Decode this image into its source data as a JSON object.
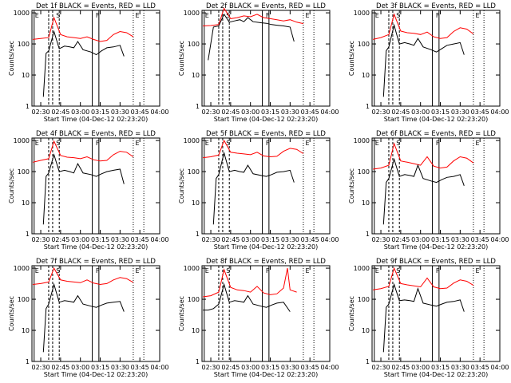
{
  "chart_data": [
    {
      "type": "line",
      "title": "Det 1f BLACK = Events, RED = LLD",
      "xlabel": "Start Time (04-Dec-12 02:23:20)",
      "ylabel": "Counts/sec",
      "xticks": [
        "02:30",
        "02:45",
        "03:00",
        "03:15",
        "03:30",
        "03:45",
        "04:00"
      ],
      "yticks": [
        "1",
        "10",
        "100",
        "1000"
      ],
      "yscale": "log",
      "xlim": [
        "02:23:20",
        "04:00:00"
      ],
      "ylim": [
        1,
        1200
      ],
      "markers": [
        "E",
        "S",
        "F",
        "E"
      ],
      "series": [
        {
          "name": "LLD",
          "color": "#ff0000",
          "x": [
            24,
            30,
            36,
            40,
            45,
            50,
            55,
            60,
            65,
            70,
            75,
            80,
            85,
            90,
            95,
            100
          ],
          "y": [
            140,
            150,
            160,
            700,
            200,
            170,
            160,
            150,
            170,
            140,
            120,
            130,
            200,
            250,
            230,
            170
          ]
        },
        {
          "name": "Events",
          "color": "#000000",
          "x": [
            32,
            34,
            36,
            40,
            44,
            48,
            52,
            55,
            58,
            62,
            68,
            72,
            76,
            80,
            85,
            90,
            93
          ],
          "y": [
            2,
            50,
            60,
            250,
            70,
            85,
            80,
            75,
            120,
            65,
            55,
            45,
            60,
            75,
            80,
            90,
            40
          ]
        }
      ]
    },
    {
      "type": "line",
      "title": "Det 2f BLACK = Events, RED = LLD",
      "xlabel": "Start Time (04-Dec-12 02:23:20)",
      "ylabel": "Counts/sec",
      "xticks": [
        "02:30",
        "02:45",
        "03:00",
        "03:15",
        "03:30",
        "03:45",
        "04:00"
      ],
      "yticks": [
        "1",
        "10",
        "100",
        "1000"
      ],
      "yscale": "log",
      "xlim": [
        "02:23:20",
        "04:00:00"
      ],
      "ylim": [
        1,
        1200
      ],
      "markers": [
        "E",
        "S",
        "F",
        "E"
      ],
      "series": [
        {
          "name": "LLD",
          "color": "#ff0000",
          "x": [
            24,
            30,
            36,
            40,
            45,
            50,
            55,
            60,
            65,
            70,
            75,
            80,
            85,
            90,
            95,
            100
          ],
          "y": [
            380,
            390,
            420,
            1400,
            650,
            700,
            800,
            750,
            900,
            700,
            650,
            600,
            550,
            600,
            500,
            450
          ]
        },
        {
          "name": "Events",
          "color": "#000000",
          "x": [
            28,
            32,
            36,
            40,
            44,
            48,
            52,
            55,
            58,
            62,
            68,
            72,
            76,
            80,
            85,
            90,
            93
          ],
          "y": [
            30,
            350,
            380,
            900,
            500,
            550,
            600,
            520,
            700,
            520,
            480,
            460,
            420,
            400,
            380,
            350,
            120
          ]
        }
      ]
    },
    {
      "type": "line",
      "title": "Det 3f BLACK = Events, RED = LLD",
      "xlabel": "Start Time (04-Dec-12 02:23:20)",
      "ylabel": "Counts/sec",
      "xticks": [
        "02:30",
        "02:45",
        "03:00",
        "03:15",
        "03:30",
        "03:45",
        "04:00"
      ],
      "yticks": [
        "1",
        "10",
        "100",
        "1000"
      ],
      "yscale": "log",
      "xlim": [
        "02:23:20",
        "04:00:00"
      ],
      "ylim": [
        1,
        1200
      ],
      "markers": [
        "E",
        "S",
        "F",
        "E"
      ],
      "series": [
        {
          "name": "LLD",
          "color": "#ff0000",
          "x": [
            24,
            30,
            36,
            40,
            45,
            50,
            55,
            60,
            65,
            70,
            75,
            80,
            85,
            90,
            95,
            100
          ],
          "y": [
            140,
            160,
            200,
            900,
            260,
            230,
            220,
            200,
            240,
            170,
            150,
            160,
            250,
            330,
            300,
            210
          ]
        },
        {
          "name": "Events",
          "color": "#000000",
          "x": [
            32,
            34,
            36,
            40,
            44,
            48,
            52,
            55,
            58,
            62,
            68,
            72,
            76,
            80,
            85,
            90,
            93
          ],
          "y": [
            2,
            60,
            80,
            400,
            100,
            110,
            100,
            90,
            150,
            80,
            65,
            55,
            70,
            90,
            100,
            110,
            45
          ]
        }
      ]
    },
    {
      "type": "line",
      "title": "Det 4f BLACK = Events, RED = LLD",
      "xlabel": "Start Time (04-Dec-12 02:23:20)",
      "ylabel": "Counts/sec",
      "xticks": [
        "02:30",
        "02:45",
        "03:00",
        "03:15",
        "03:30",
        "03:45",
        "04:00"
      ],
      "yticks": [
        "1",
        "10",
        "100",
        "1000"
      ],
      "yscale": "log",
      "xlim": [
        "02:23:20",
        "04:00:00"
      ],
      "ylim": [
        1,
        1200
      ],
      "markers": [
        "E",
        "S",
        "F",
        "E"
      ],
      "series": [
        {
          "name": "LLD",
          "color": "#ff0000",
          "x": [
            24,
            30,
            36,
            40,
            45,
            50,
            55,
            60,
            65,
            70,
            75,
            80,
            85,
            90,
            95,
            100
          ],
          "y": [
            200,
            230,
            260,
            950,
            330,
            290,
            280,
            260,
            300,
            240,
            220,
            230,
            350,
            450,
            420,
            300
          ]
        },
        {
          "name": "Events",
          "color": "#000000",
          "x": [
            32,
            34,
            36,
            40,
            44,
            48,
            52,
            55,
            58,
            62,
            68,
            72,
            76,
            80,
            85,
            90,
            93
          ],
          "y": [
            2,
            70,
            90,
            350,
            100,
            110,
            100,
            90,
            180,
            90,
            80,
            70,
            85,
            100,
            110,
            120,
            40
          ]
        }
      ]
    },
    {
      "type": "line",
      "title": "Det 5f BLACK = Events, RED = LLD",
      "xlabel": "Start Time (04-Dec-12 02:23:20)",
      "ylabel": "Counts/sec",
      "xticks": [
        "02:30",
        "02:45",
        "03:00",
        "03:15",
        "03:30",
        "03:45",
        "04:00"
      ],
      "yticks": [
        "1",
        "10",
        "100",
        "1000"
      ],
      "yscale": "log",
      "xlim": [
        "02:23:20",
        "04:00:00"
      ],
      "ylim": [
        1,
        1200
      ],
      "markers": [
        "E",
        "S",
        "F",
        "E"
      ],
      "series": [
        {
          "name": "LLD",
          "color": "#ff0000",
          "x": [
            24,
            30,
            36,
            40,
            45,
            50,
            55,
            60,
            65,
            70,
            75,
            80,
            85,
            90,
            95,
            100
          ],
          "y": [
            280,
            300,
            340,
            1000,
            420,
            390,
            370,
            350,
            420,
            320,
            300,
            310,
            450,
            560,
            520,
            380
          ]
        },
        {
          "name": "Events",
          "color": "#000000",
          "x": [
            32,
            34,
            36,
            40,
            44,
            48,
            52,
            55,
            58,
            62,
            68,
            72,
            76,
            80,
            85,
            90,
            93
          ],
          "y": [
            2,
            60,
            80,
            400,
            100,
            110,
            100,
            95,
            160,
            85,
            75,
            70,
            80,
            95,
            100,
            110,
            45
          ]
        }
      ]
    },
    {
      "type": "line",
      "title": "Det 6f BLACK = Events, RED = LLD",
      "xlabel": "Start Time (04-Dec-12 02:23:20)",
      "ylabel": "Counts/sec",
      "xticks": [
        "02:30",
        "02:45",
        "03:00",
        "03:15",
        "03:30",
        "03:45",
        "04:00"
      ],
      "yticks": [
        "1",
        "10",
        "100",
        "1000"
      ],
      "yscale": "log",
      "xlim": [
        "02:23:20",
        "04:00:00"
      ],
      "ylim": [
        1,
        1200
      ],
      "markers": [
        "E",
        "S",
        "F",
        "E"
      ],
      "series": [
        {
          "name": "LLD",
          "color": "#ff0000",
          "x": [
            24,
            30,
            36,
            40,
            45,
            50,
            55,
            60,
            65,
            70,
            75,
            80,
            85,
            90,
            95,
            100
          ],
          "y": [
            120,
            130,
            160,
            800,
            220,
            200,
            180,
            160,
            300,
            150,
            130,
            140,
            220,
            300,
            270,
            190
          ]
        },
        {
          "name": "Events",
          "color": "#000000",
          "x": [
            32,
            34,
            36,
            40,
            44,
            48,
            52,
            55,
            58,
            62,
            68,
            72,
            76,
            80,
            85,
            90,
            93
          ],
          "y": [
            2,
            45,
            60,
            250,
            70,
            80,
            75,
            70,
            160,
            60,
            50,
            45,
            55,
            65,
            70,
            80,
            35
          ]
        }
      ]
    },
    {
      "type": "line",
      "title": "Det 7f BLACK = Events, RED = LLD",
      "xlabel": "Start Time (04-Dec-12 02:23:20)",
      "ylabel": "Counts/sec",
      "xticks": [
        "02:30",
        "02:45",
        "03:00",
        "03:15",
        "03:30",
        "03:45",
        "04:00"
      ],
      "yticks": [
        "1",
        "10",
        "100",
        "1000"
      ],
      "yscale": "log",
      "xlim": [
        "02:23:20",
        "04:00:00"
      ],
      "ylim": [
        1,
        1200
      ],
      "markers": [
        "E",
        "S",
        "F",
        "E"
      ],
      "series": [
        {
          "name": "LLD",
          "color": "#ff0000",
          "x": [
            24,
            30,
            36,
            40,
            45,
            50,
            55,
            60,
            65,
            70,
            75,
            80,
            85,
            90,
            95,
            100
          ],
          "y": [
            300,
            320,
            360,
            1000,
            420,
            380,
            360,
            340,
            420,
            330,
            300,
            320,
            420,
            500,
            460,
            350
          ]
        },
        {
          "name": "Events",
          "color": "#000000",
          "x": [
            32,
            34,
            36,
            40,
            44,
            48,
            52,
            55,
            58,
            62,
            68,
            72,
            76,
            80,
            85,
            90,
            93
          ],
          "y": [
            2,
            50,
            70,
            300,
            80,
            90,
            85,
            80,
            130,
            70,
            60,
            55,
            65,
            75,
            80,
            85,
            40
          ]
        }
      ]
    },
    {
      "type": "line",
      "title": "Det 8f BLACK = Events, RED = LLD",
      "xlabel": "Start Time (04-Dec-12 02:23:20)",
      "ylabel": "Counts/sec",
      "xticks": [
        "02:30",
        "02:45",
        "03:00",
        "03:15",
        "03:30",
        "03:45",
        "04:00"
      ],
      "yticks": [
        "1",
        "10",
        "100",
        "1000"
      ],
      "yscale": "log",
      "xlim": [
        "02:23:20",
        "04:00:00"
      ],
      "ylim": [
        1,
        1200
      ],
      "markers": [
        "E",
        "S",
        "F",
        "E"
      ],
      "series": [
        {
          "name": "LLD",
          "color": "#ff0000",
          "x": [
            24,
            30,
            36,
            40,
            45,
            50,
            55,
            60,
            65,
            70,
            75,
            80,
            85,
            88,
            90,
            95
          ],
          "y": [
            120,
            130,
            170,
            900,
            240,
            200,
            190,
            170,
            260,
            160,
            140,
            150,
            230,
            1000,
            200,
            170
          ]
        },
        {
          "name": "Events",
          "color": "#000000",
          "x": [
            24,
            28,
            32,
            36,
            40,
            44,
            48,
            52,
            55,
            58,
            62,
            68,
            72,
            76,
            80,
            85,
            90
          ],
          "y": [
            45,
            45,
            50,
            70,
            300,
            80,
            90,
            85,
            80,
            130,
            70,
            60,
            55,
            65,
            75,
            80,
            40
          ]
        }
      ]
    },
    {
      "type": "line",
      "title": "Det 9f BLACK = Events, RED = LLD",
      "xlabel": "Start Time (04-Dec-12 02:23:20)",
      "ylabel": "Counts/sec",
      "xticks": [
        "02:30",
        "02:45",
        "03:00",
        "03:15",
        "03:30",
        "03:45",
        "04:00"
      ],
      "yticks": [
        "1",
        "10",
        "100",
        "1000"
      ],
      "yscale": "log",
      "xlim": [
        "02:23:20",
        "04:00:00"
      ],
      "ylim": [
        1,
        1200
      ],
      "markers": [
        "E",
        "S",
        "F",
        "E"
      ],
      "series": [
        {
          "name": "LLD",
          "color": "#ff0000",
          "x": [
            24,
            30,
            36,
            40,
            45,
            50,
            55,
            60,
            65,
            70,
            75,
            80,
            85,
            90,
            95,
            100
          ],
          "y": [
            200,
            220,
            260,
            1000,
            320,
            290,
            270,
            250,
            480,
            250,
            220,
            230,
            330,
            420,
            380,
            280
          ]
        },
        {
          "name": "Events",
          "color": "#000000",
          "x": [
            32,
            34,
            36,
            40,
            44,
            48,
            52,
            55,
            58,
            62,
            68,
            72,
            76,
            80,
            85,
            90,
            93
          ],
          "y": [
            2,
            55,
            70,
            300,
            90,
            95,
            90,
            85,
            220,
            75,
            65,
            60,
            70,
            80,
            85,
            95,
            40
          ]
        }
      ]
    }
  ]
}
